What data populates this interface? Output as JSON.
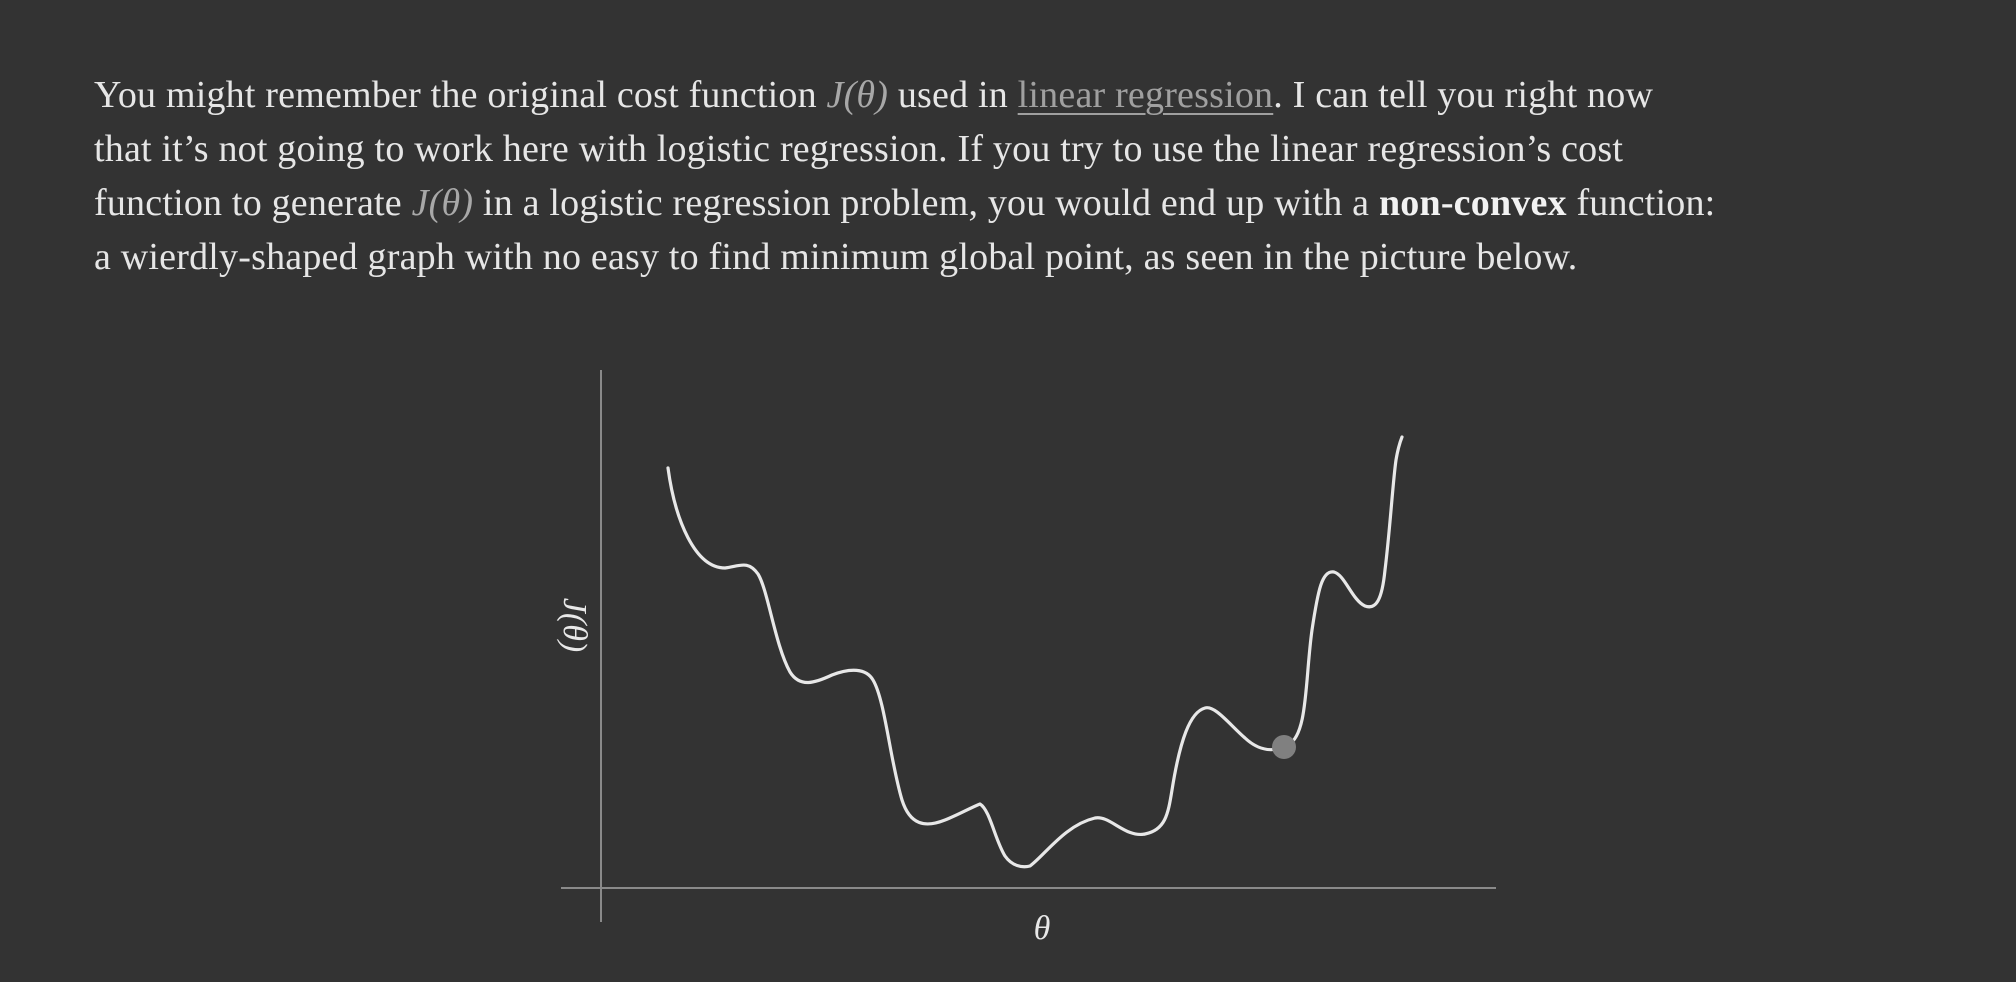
{
  "text": {
    "line1_a": "You might remember the original cost function ",
    "math_j": "J(θ)",
    "line1_b": " used in ",
    "link_linear_regression": "linear regression",
    "line1_c": ". I can tell you right now",
    "line2": "that it’s not going to work here with logistic regression. If you try to use the linear regression’s cost",
    "line3_a": "function to generate ",
    "line3_b": " in a logistic regression problem, you would end up with a ",
    "strong_non_convex": "non-convex",
    "line3_c": " function:",
    "line4": "a wierdly-shaped graph with no easy to find minimum global point, as seen in the picture below."
  },
  "figure": {
    "y_axis_label": "J(θ)",
    "x_axis_label": "θ",
    "colors": {
      "curve": "#e8e8e8",
      "axes": "#8a8a8a",
      "point": "#808080"
    }
  }
}
